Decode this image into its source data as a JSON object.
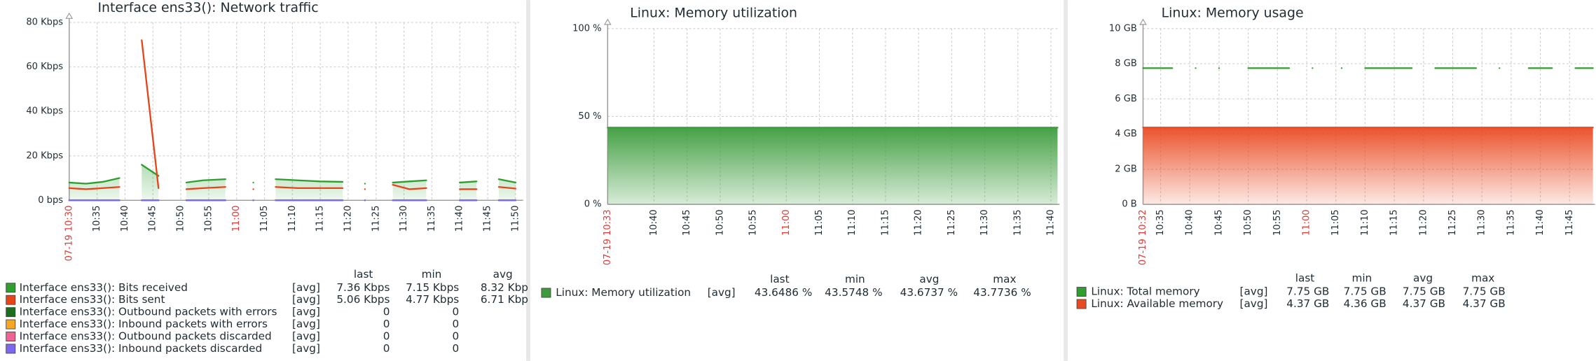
{
  "chart_data": [
    {
      "type": "line",
      "title": "Interface ens33(): Network traffic",
      "xlim": [
        "10:30",
        "11:51"
      ],
      "xticks": [
        "07-19 10:30",
        "10:35",
        "10:40",
        "10:45",
        "10:50",
        "10:55",
        "11:00",
        "11:05",
        "11:10",
        "11:15",
        "11:20",
        "11:25",
        "11:30",
        "11:35",
        "11:40",
        "11:45",
        "11:50"
      ],
      "xtick_highlight": [
        0,
        6
      ],
      "highlight_color": "#e53935",
      "ylim": [
        0,
        80
      ],
      "yticks": [
        {
          "value": 0,
          "label": "0 bps"
        },
        {
          "value": 20,
          "label": "20 Kbps"
        },
        {
          "value": 40,
          "label": "40 Kbps"
        },
        {
          "value": 60,
          "label": "60 Kbps"
        },
        {
          "value": 80,
          "label": "80 Kbps"
        }
      ],
      "grid": true,
      "fill_opacity": [
        0.35,
        0.08
      ],
      "legend_columns": [
        "last",
        "min",
        "avg"
      ],
      "x": [
        "10:30",
        "10:33",
        "10:36",
        "10:39",
        "10:41",
        "10:43",
        "10:46",
        "10:48",
        "10:51",
        "10:54",
        "10:58",
        "11:00",
        "11:03",
        "11:05",
        "11:07",
        "11:11",
        "11:15",
        "11:19",
        "11:21",
        "11:23",
        "11:25",
        "11:28",
        "11:31",
        "11:34",
        "11:37",
        "11:40",
        "11:43",
        "11:45",
        "11:47",
        "11:50"
      ],
      "series": [
        {
          "name": "Interface ens33(): Bits received",
          "color": "#2e9e2e",
          "area": true,
          "func": "[avg]",
          "stats": [
            "7.36 Kbps",
            "7.15 Kbps",
            "8.32 Kbp"
          ],
          "values": [
            8,
            7.5,
            8.3,
            10,
            null,
            16,
            11,
            null,
            8,
            9,
            9.5,
            null,
            8,
            null,
            9.5,
            9,
            8.5,
            8.3,
            null,
            7.5,
            null,
            8,
            8.5,
            9,
            null,
            8,
            8.5,
            null,
            9.5,
            8
          ]
        },
        {
          "name": "Interface ens33(): Bits sent",
          "color": "#e8441a",
          "area": false,
          "func": "[avg]",
          "stats": [
            "5.06 Kbps",
            "4.77 Kbps",
            "6.71 Kbp"
          ],
          "values": [
            5.5,
            5,
            5.5,
            6,
            null,
            72,
            5.5,
            null,
            5,
            5.5,
            6,
            null,
            5,
            null,
            6,
            5.5,
            5.5,
            5.5,
            null,
            5,
            null,
            7,
            5,
            5.5,
            null,
            5,
            5,
            null,
            6,
            5.3
          ]
        },
        {
          "name": "Interface ens33(): Outbound packets with errors",
          "color": "#1b6e1b",
          "area": false,
          "func": "[avg]",
          "stats": [
            "0",
            "0"
          ],
          "values": [
            0,
            0,
            0,
            0,
            null,
            0,
            0,
            null,
            0,
            0,
            0,
            null,
            0,
            null,
            0,
            0,
            0,
            0,
            null,
            0,
            null,
            0,
            0,
            0,
            null,
            0,
            0,
            null,
            0,
            0
          ]
        },
        {
          "name": "Interface ens33(): Inbound packets with errors",
          "color": "#f5a623",
          "area": false,
          "func": "[avg]",
          "stats": [
            "0",
            "0"
          ],
          "values": [
            0,
            0,
            0,
            0,
            null,
            0,
            0,
            null,
            0,
            0,
            0,
            null,
            0,
            null,
            0,
            0,
            0,
            0,
            null,
            0,
            null,
            0,
            0,
            0,
            null,
            0,
            0,
            null,
            0,
            0
          ]
        },
        {
          "name": "Interface ens33(): Outbound packets discarded",
          "color": "#f06292",
          "area": false,
          "func": "[avg]",
          "stats": [
            "0",
            "0"
          ],
          "values": [
            0,
            0,
            0,
            0,
            null,
            0,
            0,
            null,
            0,
            0,
            0,
            null,
            0,
            null,
            0,
            0,
            0,
            0,
            null,
            0,
            null,
            0,
            0,
            0,
            null,
            0,
            0,
            null,
            0,
            0
          ]
        },
        {
          "name": "Interface ens33(): Inbound packets discarded",
          "color": "#7b68ee",
          "area": false,
          "func": "[avg]",
          "stats": [
            "0",
            "0"
          ],
          "values": [
            0,
            0,
            0,
            0,
            null,
            0,
            0,
            null,
            0,
            0,
            0,
            null,
            0,
            null,
            0,
            0,
            0,
            0,
            null,
            0,
            null,
            0,
            0,
            0,
            null,
            0,
            0,
            null,
            0,
            0
          ]
        }
      ]
    },
    {
      "type": "line",
      "title": "Linux: Memory utilization",
      "xlim": [
        "10:33",
        "11:41"
      ],
      "xticks": [
        "07-19 10:33",
        "10:40",
        "10:45",
        "10:50",
        "10:55",
        "11:00",
        "11:05",
        "11:10",
        "11:15",
        "11:20",
        "11:25",
        "11:30",
        "11:35",
        "11:40"
      ],
      "xtick_highlight": [
        0,
        5
      ],
      "highlight_color": "#e53935",
      "ylim": [
        0,
        100
      ],
      "yticks": [
        {
          "value": 0,
          "label": "0 %"
        },
        {
          "value": 50,
          "label": "50 %"
        },
        {
          "value": 100,
          "label": "100 %"
        }
      ],
      "grid": true,
      "fill_opacity": [
        0.95,
        0.2
      ],
      "legend_columns": [
        "last",
        "min",
        "avg",
        "max"
      ],
      "x": [
        "10:33",
        "11:41"
      ],
      "series": [
        {
          "name": "Linux: Memory utilization",
          "color": "#3c9c3c",
          "area": true,
          "func": "[avg]",
          "stats": [
            "43.6486 %",
            "43.5748 %",
            "43.6737 %",
            "43.7736 %"
          ],
          "values": [
            43.65,
            43.65
          ]
        }
      ]
    },
    {
      "type": "line",
      "title": "Linux: Memory usage",
      "xlim": [
        "10:32",
        "11:49"
      ],
      "xticks": [
        "07-19 10:32",
        "10:35",
        "10:40",
        "10:45",
        "10:50",
        "10:55",
        "11:00",
        "11:05",
        "11:10",
        "11:15",
        "11:20",
        "11:25",
        "11:30",
        "11:35",
        "11:40",
        "11:45"
      ],
      "xtick_highlight": [
        0,
        6
      ],
      "highlight_color": "#e53935",
      "ylim": [
        0,
        10
      ],
      "yticks": [
        {
          "value": 0,
          "label": "0 B"
        },
        {
          "value": 2,
          "label": "2 GB"
        },
        {
          "value": 4,
          "label": "4 GB"
        },
        {
          "value": 6,
          "label": "6 GB"
        },
        {
          "value": 8,
          "label": "8 GB"
        },
        {
          "value": 10,
          "label": "10 GB"
        }
      ],
      "grid": true,
      "fill_opacity": [
        0.95,
        0.12
      ],
      "legend_columns": [
        "last",
        "min",
        "avg",
        "max"
      ],
      "x": [
        "10:32",
        "10:37",
        "10:39",
        "10:41",
        "10:43",
        "10:45",
        "10:48",
        "10:50",
        "10:57",
        "10:59",
        "11:01",
        "11:04",
        "11:06",
        "11:08",
        "11:10",
        "11:18",
        "11:20",
        "11:22",
        "11:29",
        "11:31",
        "11:33",
        "11:36",
        "11:38",
        "11:42",
        "11:44",
        "11:46",
        "11:49"
      ],
      "series": [
        {
          "name": "Linux: Total memory",
          "color": "#2e9e2e",
          "area": false,
          "func": "[avg]",
          "stats": [
            "7.75 GB",
            "7.75 GB",
            "7.75 GB",
            "7.75 GB"
          ],
          "values": [
            7.75,
            7.75,
            null,
            7.75,
            null,
            7.75,
            null,
            7.75,
            7.75,
            null,
            7.75,
            null,
            7.75,
            null,
            7.75,
            7.75,
            null,
            7.75,
            7.75,
            null,
            7.75,
            null,
            7.75,
            7.75,
            null,
            7.75,
            7.75
          ]
        },
        {
          "name": "Linux: Available memory",
          "color": "#ea4a22",
          "area": true,
          "func": "[avg]",
          "stats": [
            "4.37 GB",
            "4.36 GB",
            "4.37 GB",
            "4.37 GB"
          ],
          "values": [
            4.37,
            4.37,
            4.37,
            4.37,
            4.37,
            4.37,
            4.37,
            4.37,
            4.37,
            4.37,
            4.37,
            4.37,
            4.37,
            4.37,
            4.37,
            4.37,
            4.37,
            4.37,
            4.37,
            4.37,
            4.37,
            4.37,
            4.37,
            4.37,
            4.37,
            4.37,
            4.37
          ]
        }
      ]
    }
  ]
}
